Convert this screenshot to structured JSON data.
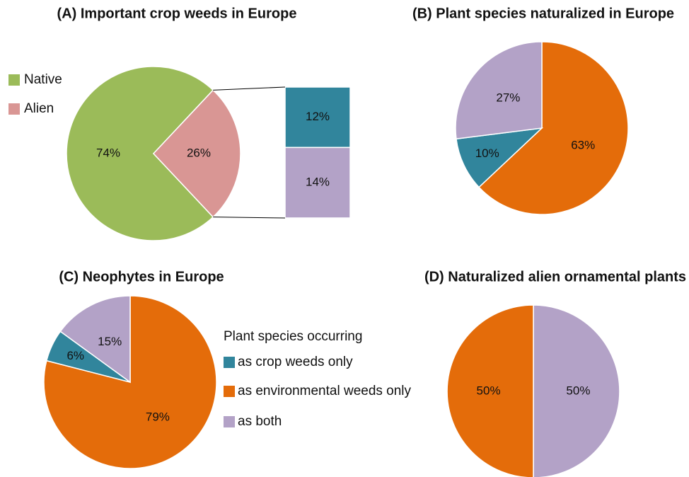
{
  "chart_data": [
    {
      "type": "pie",
      "title": "(A) Important crop weeds in Europe",
      "categories": [
        "Native",
        "Alien"
      ],
      "values": [
        74,
        26
      ],
      "value_labels": [
        "74%",
        "26%"
      ],
      "colors": [
        "#9bbb59",
        "#d99694"
      ],
      "breakdown": {
        "values": [
          12,
          14
        ],
        "value_labels": [
          "12%",
          "14%"
        ],
        "colors": [
          "#31859c",
          "#b3a2c7"
        ]
      }
    },
    {
      "type": "pie",
      "title": "(B) Plant species naturalized in Europe",
      "values": [
        63,
        10,
        27
      ],
      "value_labels": [
        "63%",
        "10%",
        "27%"
      ],
      "colors": [
        "#e46c0a",
        "#31859c",
        "#b3a2c7"
      ]
    },
    {
      "type": "pie",
      "title": "(C) Neophytes in Europe",
      "values": [
        79,
        6,
        15
      ],
      "value_labels": [
        "79%",
        "6%",
        "15%"
      ],
      "colors": [
        "#e46c0a",
        "#31859c",
        "#b3a2c7"
      ],
      "legend_title": "Plant species occurring",
      "categories": [
        "as environmental weeds only",
        "as crop weeds only",
        "as both"
      ]
    },
    {
      "type": "pie",
      "title": "(D) Naturalized alien ornamental plants",
      "values": [
        50,
        50
      ],
      "value_labels": [
        "50%",
        "50%"
      ],
      "colors": [
        "#b3a2c7",
        "#e46c0a"
      ]
    }
  ]
}
